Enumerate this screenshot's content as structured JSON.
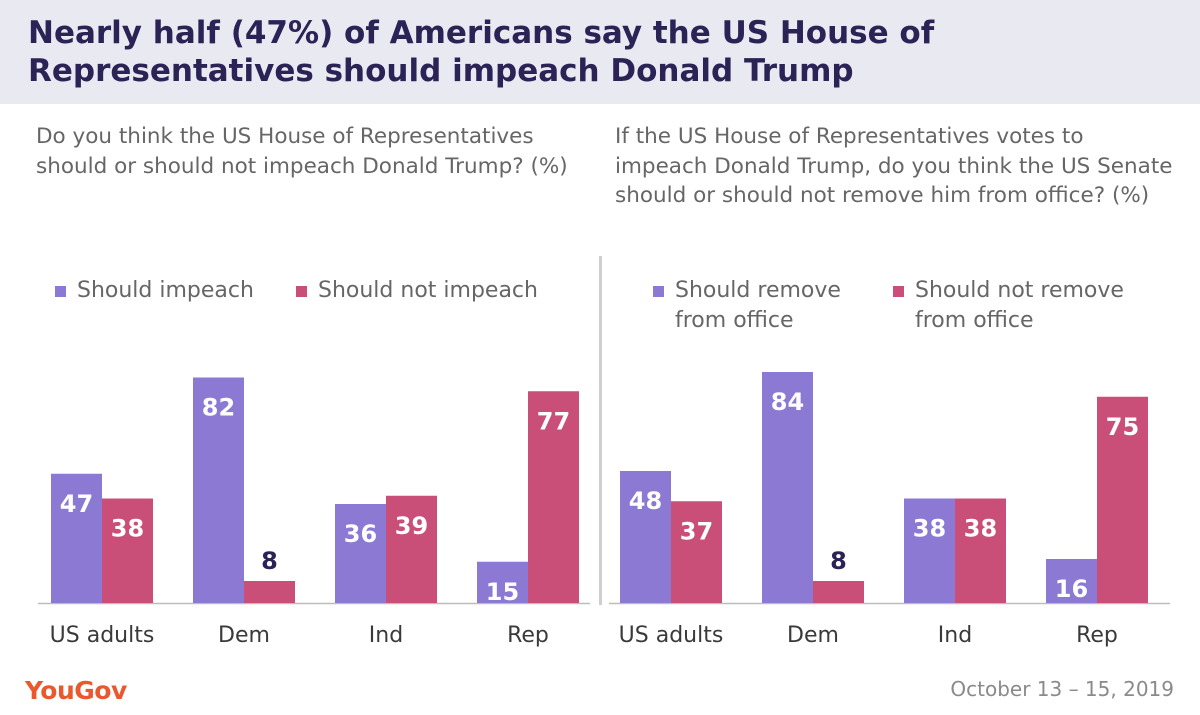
{
  "title": "Nearly half (47%) of Americans say the US House of Representatives should impeach Donald Trump",
  "colors": {
    "purple": "#8b79d4",
    "pink": "#c94f79",
    "header_bg": "#e9e9f1",
    "brand": "#e85a2e"
  },
  "panels": [
    {
      "question": "Do you think the US House of Representatives should or should not impeach Donald Trump? (%)",
      "legend": [
        "Should impeach",
        "Should not impeach"
      ]
    },
    {
      "question": "If the US House of Representatives votes to impeach Donald Trump, do you think the US Senate should or should not remove him from office? (%)",
      "legend": [
        "Should remove from office",
        "Should not remove from office"
      ]
    }
  ],
  "chart_data": [
    {
      "type": "bar",
      "categories": [
        "US adults",
        "Dem",
        "Ind",
        "Rep"
      ],
      "series": [
        {
          "name": "Should impeach",
          "values": [
            47,
            82,
            36,
            15
          ]
        },
        {
          "name": "Should not impeach",
          "values": [
            38,
            8,
            39,
            77
          ]
        }
      ],
      "ylim": [
        0,
        90
      ],
      "grid": false
    },
    {
      "type": "bar",
      "categories": [
        "US adults",
        "Dem",
        "Ind",
        "Rep"
      ],
      "series": [
        {
          "name": "Should remove from office",
          "values": [
            48,
            84,
            38,
            16
          ]
        },
        {
          "name": "Should not remove from office",
          "values": [
            37,
            8,
            38,
            75
          ]
        }
      ],
      "ylim": [
        0,
        90
      ],
      "grid": false
    }
  ],
  "footer": {
    "brand": "YouGov",
    "date": "October 13 – 15, 2019"
  }
}
